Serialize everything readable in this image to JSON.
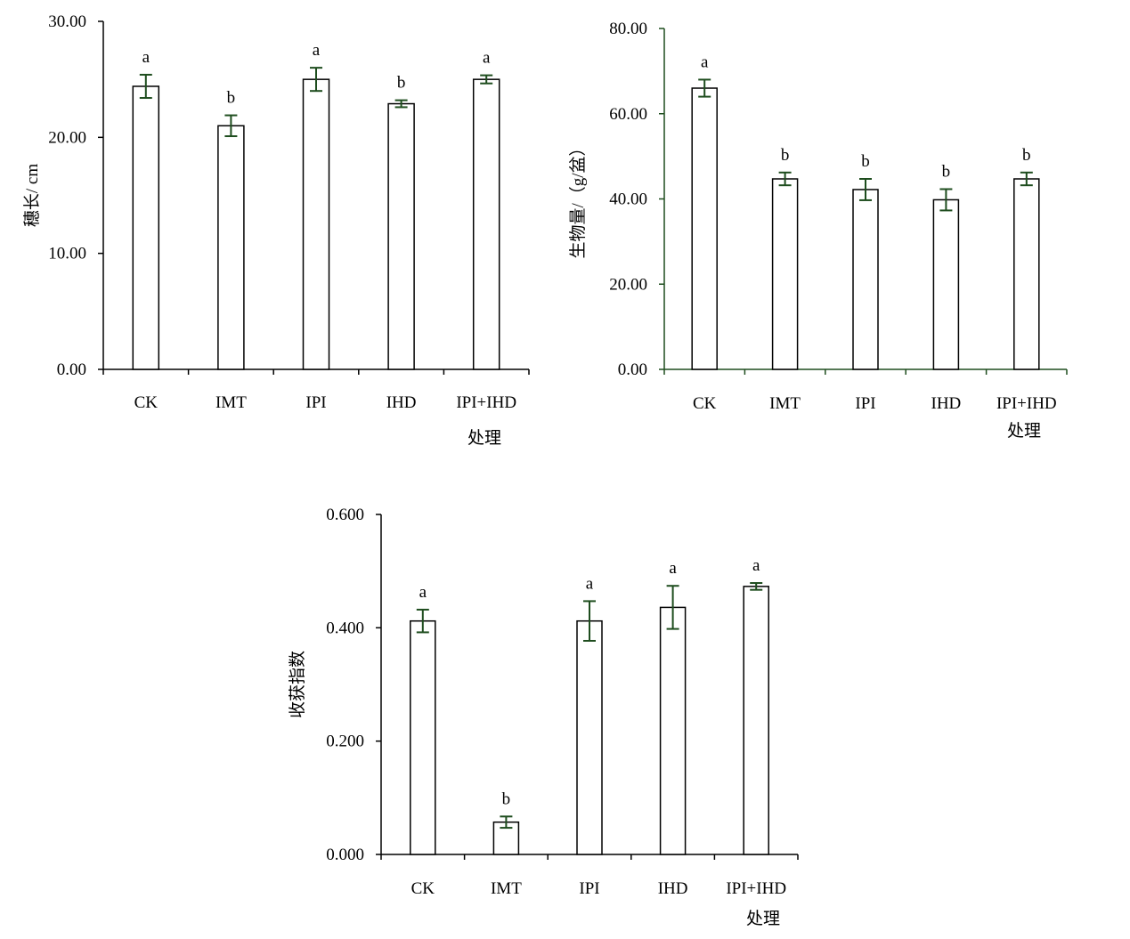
{
  "chart_data": [
    {
      "type": "bar",
      "categories": [
        "CK",
        "IMT",
        "IPI",
        "IHD",
        "IPI+IHD"
      ],
      "values": [
        24.4,
        21.0,
        25.0,
        22.9,
        25.0
      ],
      "errors": [
        1.0,
        0.9,
        1.0,
        0.3,
        0.35
      ],
      "significance": [
        "a",
        "b",
        "a",
        "b",
        "a"
      ],
      "ylabel": "穗长/ cm",
      "xlabel": "处理",
      "ylim": [
        0,
        30
      ],
      "yticks": [
        "0.00",
        "10.00",
        "20.00",
        "30.00"
      ],
      "axis_color": "#000000",
      "errorbar_color": "#1e4d1e"
    },
    {
      "type": "bar",
      "categories": [
        "CK",
        "IMT",
        "IPI",
        "IHD",
        "IPI+IHD"
      ],
      "values": [
        66.0,
        44.7,
        42.2,
        39.8,
        44.7
      ],
      "errors": [
        2.0,
        1.5,
        2.5,
        2.5,
        1.5
      ],
      "significance": [
        "a",
        "b",
        "b",
        "b",
        "b"
      ],
      "ylabel": "生物量/（g/盆）",
      "xlabel": "处理",
      "ylim": [
        0,
        80
      ],
      "yticks": [
        "0.00",
        "20.00",
        "40.00",
        "60.00",
        "80.00"
      ],
      "axis_color": "#1e4d1e",
      "errorbar_color": "#1e4d1e"
    },
    {
      "type": "bar",
      "categories": [
        "CK",
        "IMT",
        "IPI",
        "IHD",
        "IPI+IHD"
      ],
      "values": [
        0.412,
        0.057,
        0.412,
        0.436,
        0.473
      ],
      "errors": [
        0.02,
        0.01,
        0.035,
        0.038,
        0.006
      ],
      "significance": [
        "a",
        "b",
        "a",
        "a",
        "a"
      ],
      "ylabel": "收获指数",
      "xlabel": "处理",
      "ylim": [
        0,
        0.6
      ],
      "yticks": [
        "0.000",
        "0.200",
        "0.400",
        "0.600"
      ],
      "axis_color": "#000000",
      "errorbar_color": "#1e4d1e"
    }
  ]
}
